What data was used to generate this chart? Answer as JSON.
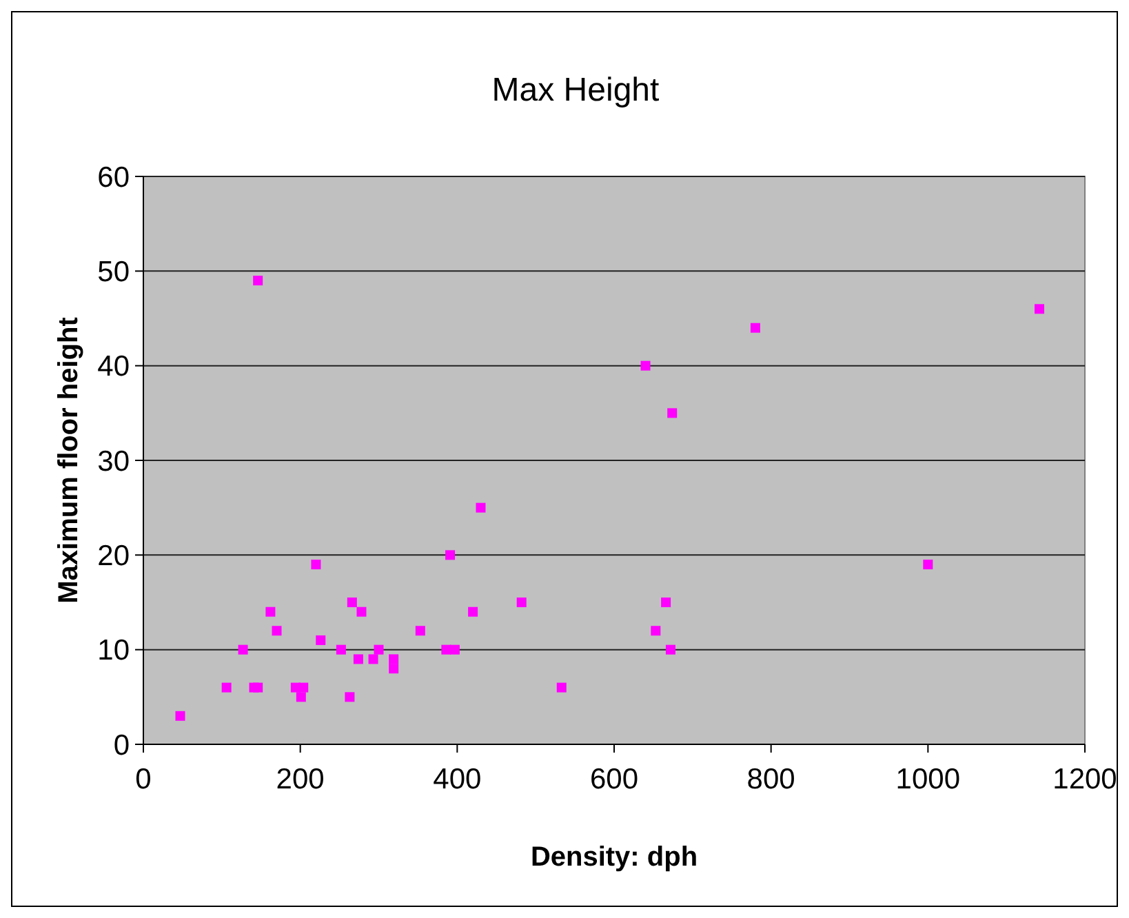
{
  "chart_data": {
    "type": "scatter",
    "title": "Max Height",
    "xlabel": "Density: dph",
    "ylabel": "Maximum floor height",
    "x": [
      47,
      106,
      127,
      141,
      146,
      146,
      162,
      170,
      194,
      201,
      204,
      220,
      226,
      252,
      263,
      266,
      274,
      278,
      293,
      300,
      319,
      319,
      353,
      386,
      397,
      391,
      420,
      430,
      482,
      533,
      640,
      653,
      666,
      672,
      674,
      780,
      1000,
      1142
    ],
    "series": [
      {
        "color": "#ff00ff",
        "values": [
          3,
          6,
          10,
          6,
          6,
          49,
          14,
          12,
          6,
          5,
          6,
          19,
          11,
          10,
          5,
          15,
          9,
          14,
          9,
          10,
          9,
          8,
          12,
          10,
          10,
          20,
          14,
          25,
          15,
          6,
          40,
          12,
          15,
          10,
          35,
          44,
          19,
          46
        ]
      }
    ],
    "xlim": [
      0,
      1200
    ],
    "xticks": [
      0,
      200,
      400,
      600,
      800,
      1000,
      1200
    ],
    "ylim": [
      0,
      60
    ],
    "yticks": [
      0,
      10,
      20,
      30,
      40,
      50,
      60
    ],
    "grid": "y",
    "marker": "square"
  }
}
